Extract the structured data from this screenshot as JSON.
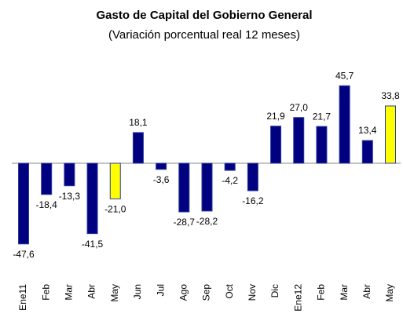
{
  "chart_data": {
    "type": "bar",
    "title": "Gasto de Capital del Gobierno General",
    "subtitle": "(Variación porcentual real 12 meses)",
    "categories": [
      "Ene11",
      "Feb",
      "Mar",
      "Abr",
      "May",
      "Jun",
      "Jul",
      "Ago",
      "Sep",
      "Oct",
      "Nov",
      "Dic",
      "Ene12",
      "Feb",
      "Mar",
      "Abr",
      "May"
    ],
    "values": [
      -47.6,
      -18.4,
      -13.3,
      -41.5,
      -21.0,
      18.1,
      -3.6,
      -28.7,
      -28.2,
      -4.2,
      -16.2,
      21.9,
      27.0,
      21.7,
      45.7,
      13.4,
      33.8
    ],
    "value_labels": [
      "-47,6",
      "-18,4",
      "-13,3",
      "-41,5",
      "-21,0",
      "18,1",
      "-3,6",
      "-28,7",
      "-28,2",
      "-4,2",
      "-16,2",
      "21,9",
      "27,0",
      "21,7",
      "45,7",
      "13,4",
      "33,8"
    ],
    "colors": [
      "#000080",
      "#000080",
      "#000080",
      "#000080",
      "#ffff00",
      "#000080",
      "#000080",
      "#000080",
      "#000080",
      "#000080",
      "#000080",
      "#000080",
      "#000080",
      "#000080",
      "#000080",
      "#000080",
      "#ffff00"
    ],
    "ylim": [
      -50,
      50
    ]
  }
}
